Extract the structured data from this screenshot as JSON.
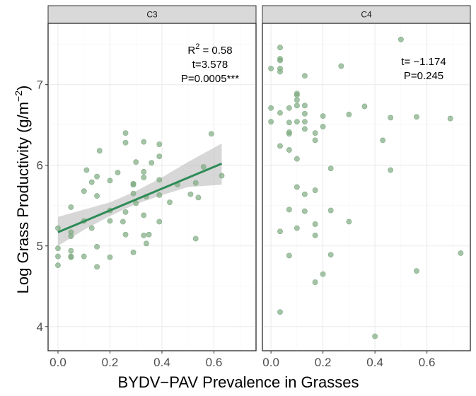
{
  "chart_data": {
    "type": "scatter",
    "xlabel": "BYDV−PAV Prevalence in Grasses",
    "ylabel_main": "Log Grass Productivity (g/m",
    "ylabel_sup": "−2",
    "ylabel_close": ")",
    "ylim": [
      3.7,
      7.76
    ],
    "yticks": [
      4,
      5,
      6,
      7
    ],
    "ytick_labels": [
      "4",
      "5",
      "6",
      "7"
    ],
    "xticks": [
      0.0,
      0.2,
      0.4,
      0.6
    ],
    "xtick_labels": [
      "0.0",
      "0.2",
      "0.4",
      "0.6"
    ],
    "grid": true,
    "colors": {
      "point": "#7fab82",
      "fit_line": "#2e8b57",
      "ribbon": "#bdbdbd",
      "strip": "#d9d9d9"
    },
    "panels": [
      {
        "label": "C3",
        "xlim": [
          -0.038,
          0.762
        ],
        "annotation": {
          "r2_prefix": "R",
          "r2_sup": "2",
          "r2_value": " = 0.58",
          "t": "t=3.578",
          "p": "P=0.0005***"
        },
        "fit": {
          "intercept": 5.17,
          "slope": 1.35,
          "x_range": [
            0,
            0.63
          ]
        },
        "ribbon": {
          "x": [
            0,
            0.1,
            0.2,
            0.3,
            0.4,
            0.5,
            0.63
          ],
          "lower": [
            5.0,
            5.2,
            5.37,
            5.52,
            5.63,
            5.73,
            5.76
          ],
          "upper": [
            5.36,
            5.45,
            5.54,
            5.68,
            5.85,
            6.04,
            6.27
          ]
        },
        "points": [
          [
            0.26,
            6.4
          ],
          [
            0.26,
            6.28
          ],
          [
            0.33,
            6.29
          ],
          [
            0.16,
            6.18
          ],
          [
            0.3,
            6.04
          ],
          [
            0.36,
            6.03
          ],
          [
            0.11,
            5.94
          ],
          [
            0.23,
            5.91
          ],
          [
            0.33,
            5.92
          ],
          [
            0.33,
            5.85
          ],
          [
            0.15,
            5.86
          ],
          [
            0.13,
            5.79
          ],
          [
            0.2,
            5.81
          ],
          [
            0.29,
            5.77
          ],
          [
            0.29,
            5.76
          ],
          [
            0.1,
            5.68
          ],
          [
            0.15,
            5.62
          ],
          [
            0.29,
            5.65
          ],
          [
            0.34,
            5.61
          ],
          [
            0.3,
            5.53
          ],
          [
            0.05,
            5.48
          ],
          [
            0.26,
            5.42
          ],
          [
            0.2,
            5.44
          ],
          [
            0.1,
            5.31
          ],
          [
            0.2,
            5.31
          ],
          [
            0.25,
            5.3
          ],
          [
            0.33,
            5.38
          ],
          [
            0.0,
            5.22
          ],
          [
            0.13,
            5.22
          ],
          [
            0.05,
            5.17
          ],
          [
            0.05,
            5.12
          ],
          [
            0.26,
            5.14
          ],
          [
            0.33,
            5.13
          ],
          [
            0.35,
            5.14
          ],
          [
            0.34,
            5.03
          ],
          [
            0.0,
            4.97
          ],
          [
            0.05,
            4.94
          ],
          [
            0.15,
            4.99
          ],
          [
            0.29,
            4.92
          ],
          [
            0.0,
            4.87
          ],
          [
            0.05,
            4.86
          ],
          [
            0.05,
            4.87
          ],
          [
            0.1,
            4.87
          ],
          [
            0.2,
            4.86
          ],
          [
            0.0,
            4.76
          ],
          [
            0.15,
            4.74
          ],
          [
            0.39,
            6.26
          ],
          [
            0.39,
            6.11
          ],
          [
            0.59,
            6.39
          ],
          [
            0.56,
            5.98
          ],
          [
            0.63,
            5.87
          ],
          [
            0.39,
            5.82
          ],
          [
            0.53,
            5.78
          ],
          [
            0.46,
            5.76
          ],
          [
            0.39,
            5.63
          ],
          [
            0.51,
            5.64
          ],
          [
            0.54,
            5.6
          ],
          [
            0.43,
            5.54
          ],
          [
            0.39,
            5.3
          ],
          [
            0.53,
            5.09
          ]
        ]
      },
      {
        "label": "C4",
        "xlim": [
          -0.033,
          0.767
        ],
        "annotation": {
          "t": "t= −1.174",
          "p": "P=0.245"
        },
        "points": [
          [
            0.035,
            7.46
          ],
          [
            0.035,
            7.32
          ],
          [
            0.035,
            7.3
          ],
          [
            0.0,
            7.2
          ],
          [
            0.035,
            7.2
          ],
          [
            0.035,
            7.16
          ],
          [
            0.27,
            7.23
          ],
          [
            0.13,
            7.11
          ],
          [
            0.1,
            6.89
          ],
          [
            0.1,
            6.87
          ],
          [
            0.1,
            6.81
          ],
          [
            0.0,
            6.71
          ],
          [
            0.07,
            6.71
          ],
          [
            0.1,
            6.74
          ],
          [
            0.13,
            6.74
          ],
          [
            0.035,
            6.65
          ],
          [
            0.13,
            6.64
          ],
          [
            0.2,
            6.61
          ],
          [
            0.3,
            6.63
          ],
          [
            0.0,
            6.54
          ],
          [
            0.07,
            6.53
          ],
          [
            0.1,
            6.54
          ],
          [
            0.13,
            6.54
          ],
          [
            0.13,
            6.45
          ],
          [
            0.17,
            6.4
          ],
          [
            0.2,
            6.48
          ],
          [
            0.07,
            6.41
          ],
          [
            0.07,
            6.39
          ],
          [
            0.17,
            6.31
          ],
          [
            0.035,
            6.24
          ],
          [
            0.07,
            6.19
          ],
          [
            0.1,
            6.08
          ],
          [
            0.23,
            5.96
          ],
          [
            0.1,
            5.73
          ],
          [
            0.13,
            5.64
          ],
          [
            0.17,
            5.69
          ],
          [
            0.5,
            7.56
          ],
          [
            0.36,
            6.73
          ],
          [
            0.46,
            6.59
          ],
          [
            0.56,
            6.6
          ],
          [
            0.69,
            6.58
          ],
          [
            0.43,
            6.31
          ],
          [
            0.46,
            5.94
          ],
          [
            0.07,
            5.45
          ],
          [
            0.13,
            5.43
          ],
          [
            0.23,
            5.44
          ],
          [
            0.3,
            5.3
          ],
          [
            0.035,
            5.18
          ],
          [
            0.1,
            5.22
          ],
          [
            0.17,
            5.27
          ],
          [
            0.17,
            5.13
          ],
          [
            0.07,
            4.88
          ],
          [
            0.23,
            4.89
          ],
          [
            0.2,
            4.65
          ],
          [
            0.17,
            4.55
          ],
          [
            0.56,
            4.69
          ],
          [
            0.73,
            4.91
          ],
          [
            0.035,
            4.18
          ],
          [
            0.4,
            3.88
          ]
        ]
      }
    ]
  }
}
